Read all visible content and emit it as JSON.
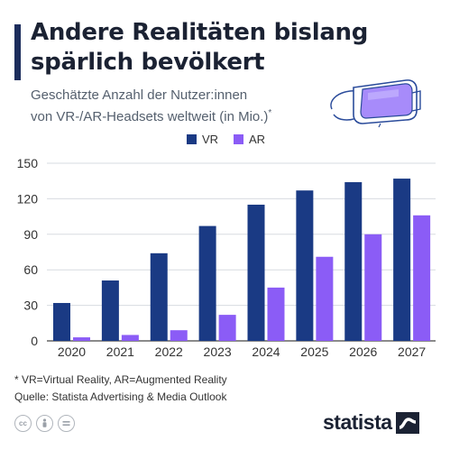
{
  "header": {
    "title_line1": "Andere Realitäten bislang",
    "title_line2": "spärlich bevölkert",
    "subtitle_line1": "Geschätzte Anzahl der Nutzer:innen",
    "subtitle_line2": "von VR-/AR-Headsets weltweit (in Mio.)",
    "subtitle_mark": "*",
    "accent_color": "#1c2d5c"
  },
  "chart_data": {
    "type": "bar",
    "title": "Andere Realitäten bislang spärlich bevölkert",
    "categories": [
      "2020",
      "2021",
      "2022",
      "2023",
      "2024",
      "2025",
      "2026",
      "2027"
    ],
    "series": [
      {
        "name": "VR",
        "color": "#1a3a84",
        "values": [
          32,
          51,
          74,
          97,
          115,
          127,
          134,
          137
        ]
      },
      {
        "name": "AR",
        "color": "#8b5cf6",
        "values": [
          3,
          5,
          9,
          22,
          45,
          71,
          90,
          106
        ]
      }
    ],
    "ylim": [
      0,
      150
    ],
    "yticks": [
      "0",
      "30",
      "60",
      "90",
      "120",
      "150"
    ],
    "grid": true,
    "legend_position": "top-center",
    "xlabel": "",
    "ylabel": ""
  },
  "footer": {
    "footnote": "* VR=Virtual Reality, AR=Augmented Reality",
    "source": "Quelle: Statista Advertising & Media Outlook",
    "brand": "statista",
    "license_icons": [
      "cc-icon",
      "attribution-icon",
      "no-derivatives-icon"
    ]
  }
}
